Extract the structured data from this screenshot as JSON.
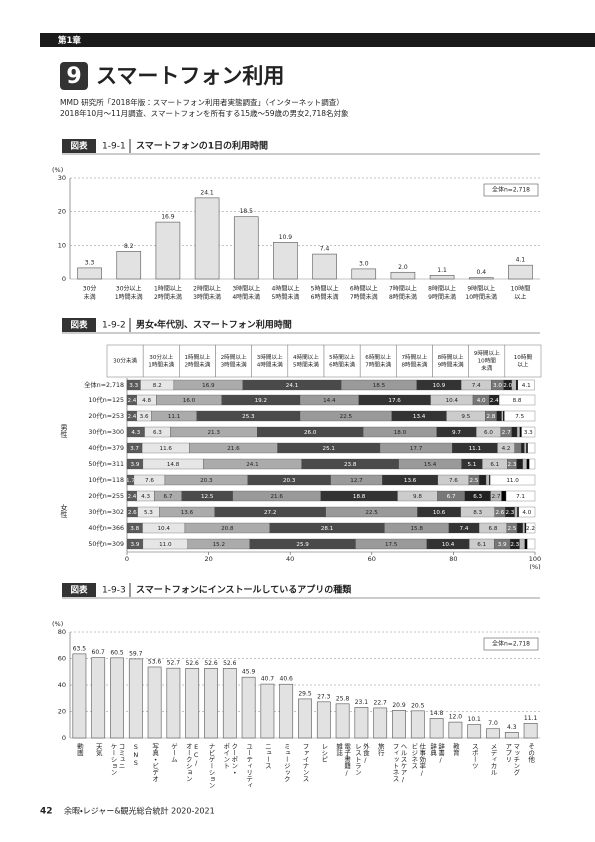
{
  "header": {
    "chapter": "第1章",
    "section_no": "9",
    "section_title": "スマートフォン利用"
  },
  "source": [
    "MMD 研究所「2018年版：スマートフォン利用者実態調査」（インターネット調査）",
    "2018年10月～11月調査、スマートフォンを所有する15歳～59歳の男女2,718名対象"
  ],
  "footer": {
    "page": "42",
    "book": "余暇・レジャー&観光総合統計 2020-2021"
  },
  "chart_data": [
    {
      "type": "bar",
      "figure_tag": "図表",
      "figure_no": "1-9-1",
      "title": "スマートフォンの1日の利用時間",
      "y_unit": "(%)",
      "legend_label": "全体n=2,718",
      "color": "#e2e2e2",
      "grid": true,
      "categories": [
        [
          "30分",
          "未満"
        ],
        [
          "30分以上",
          "1時間未満"
        ],
        [
          "1時間以上",
          "2時間未満"
        ],
        [
          "2時間以上",
          "3時間未満"
        ],
        [
          "3時間以上",
          "4時間未満"
        ],
        [
          "4時間以上",
          "5時間未満"
        ],
        [
          "5時間以上",
          "6時間未満"
        ],
        [
          "6時間以上",
          "7時間未満"
        ],
        [
          "7時間以上",
          "8時間未満"
        ],
        [
          "8時間以上",
          "9時間未満"
        ],
        [
          "9時間以上",
          "10時間未満"
        ],
        [
          "10時間",
          "以上"
        ]
      ],
      "values": [
        3.3,
        8.2,
        16.9,
        24.1,
        18.5,
        10.9,
        7.4,
        3.0,
        2.0,
        1.1,
        0.4,
        4.1
      ],
      "value_labels": [
        "3.3",
        "8.2",
        "16.9",
        "24.1",
        "18.5",
        "10.9",
        "7.4",
        "3.0",
        "2.0",
        "1.1",
        "0.4",
        "4.1"
      ],
      "ylim": [
        0,
        30
      ],
      "yticks": [
        0,
        10,
        20,
        30
      ]
    },
    {
      "type": "stacked-hbar",
      "figure_tag": "図表",
      "figure_no": "1-9-2",
      "title": "男女・年代別、スマートフォン利用時間",
      "x_unit": "(%)",
      "group_labels": [
        "男性",
        "女性"
      ],
      "categories": [
        "全体n=2,718",
        "10代n=125",
        "20代n=253",
        "30代n=300",
        "40代n=379",
        "50代n=311",
        "10代n=118",
        "20代n=255",
        "30代n=302",
        "40代n=366",
        "50代n=309"
      ],
      "series": [
        {
          "name": [
            "30分未満"
          ],
          "color": "#5a5a5a",
          "values": [
            3.3,
            2.4,
            2.4,
            4.3,
            3.7,
            3.9,
            1.7,
            2.4,
            2.6,
            3.8,
            3.9
          ],
          "value_labels": [
            "3.3",
            "2.4",
            "2.4",
            "4.3",
            "3.7",
            "3.9",
            "1.7",
            "2.4",
            "2.6",
            "3.8",
            "3.9"
          ]
        },
        {
          "name": [
            "30分以上",
            "1時間未満"
          ],
          "color": "#e6e6e6",
          "values": [
            8.2,
            4.8,
            3.6,
            6.3,
            11.6,
            14.8,
            7.6,
            4.3,
            5.3,
            10.4,
            11.0
          ],
          "value_labels": [
            "8.2",
            "4.8",
            "3.6",
            "6.3",
            "11.6",
            "14.8",
            "7.6",
            "4.3",
            "5.3",
            "10.4",
            "11.0"
          ]
        },
        {
          "name": [
            "1時間以上",
            "2時間未満"
          ],
          "color": "#ababab",
          "values": [
            16.9,
            16.0,
            11.1,
            21.3,
            21.6,
            24.1,
            20.3,
            6.7,
            13.6,
            20.8,
            15.2
          ],
          "value_labels": [
            "16.9",
            "16.0",
            "11.1",
            "21.3",
            "21.6",
            "24.1",
            "20.3",
            "6.7",
            "13.6",
            "20.8",
            "15.2"
          ]
        },
        {
          "name": [
            "2時間以上",
            "3時間未満"
          ],
          "color": "#4a4a4a",
          "values": [
            24.1,
            19.2,
            25.3,
            26.0,
            25.1,
            23.8,
            20.3,
            12.5,
            27.2,
            28.1,
            25.9
          ],
          "value_labels": [
            "24.1",
            "19.2",
            "25.3",
            "26.0",
            "25.1",
            "23.8",
            "20.3",
            "12.5",
            "27.2",
            "28.1",
            "25.9"
          ]
        },
        {
          "name": [
            "3時間以上",
            "4時間未満"
          ],
          "color": "#9a9a9a",
          "values": [
            18.5,
            14.4,
            22.5,
            18.0,
            17.7,
            15.4,
            12.7,
            21.6,
            22.5,
            15.8,
            17.5
          ],
          "value_labels": [
            "18.5",
            "14.4",
            "22.5",
            "18.0",
            "17.7",
            "15.4",
            "12.7",
            "21.6",
            "22.5",
            "15.8",
            "17.5"
          ]
        },
        {
          "name": [
            "4時間以上",
            "5時間未満"
          ],
          "color": "#333333",
          "values": [
            10.9,
            17.6,
            13.4,
            9.7,
            11.1,
            5.1,
            13.6,
            18.8,
            10.6,
            7.4,
            10.4
          ],
          "value_labels": [
            "10.9",
            "17.6",
            "13.4",
            "9.7",
            "11.1",
            "5.1",
            "13.6",
            "18.8",
            "10.6",
            "7.4",
            "10.4"
          ]
        },
        {
          "name": [
            "5時間以上",
            "6時間未満"
          ],
          "color": "#cccccc",
          "values": [
            7.4,
            10.4,
            9.5,
            6.0,
            4.2,
            6.1,
            7.6,
            9.8,
            8.3,
            6.8,
            6.1
          ],
          "value_labels": [
            "7.4",
            "10.4",
            "9.5",
            "6.0",
            "4.2",
            "6.1",
            "7.6",
            "9.8",
            "8.3",
            "6.8",
            "6.1"
          ]
        },
        {
          "name": [
            "6時間以上",
            "7時間未満"
          ],
          "color": "#777777",
          "values": [
            3.0,
            4.0,
            2.8,
            2.7,
            1.6,
            2.3,
            2.5,
            6.7,
            2.6,
            2.5,
            3.9
          ],
          "value_labels": [
            "3.0",
            "4.0",
            "2.8",
            "2.7",
            null,
            "2.3",
            "2.5",
            "6.7",
            "2.6",
            "2.5",
            "3.9"
          ]
        },
        {
          "name": [
            "7時間以上",
            "8時間未満"
          ],
          "color": "#222222",
          "values": [
            2.0,
            2.4,
            1.2,
            1.3,
            0.8,
            1.5,
            1.7,
            6.3,
            2.3,
            1.4,
            2.3
          ],
          "value_labels": [
            "2.0",
            "2.4",
            null,
            null,
            null,
            null,
            null,
            "6.3",
            "2.3",
            null,
            "2.3"
          ]
        },
        {
          "name": [
            "8時間以上",
            "9時間未満"
          ],
          "color": "#bbbbbb",
          "values": [
            1.1,
            0,
            0.4,
            0.7,
            0.5,
            1.0,
            0.8,
            2.7,
            0.7,
            0.5,
            1.3
          ],
          "value_labels": [
            null,
            null,
            null,
            null,
            null,
            null,
            null,
            "2.7",
            null,
            null,
            null
          ]
        },
        {
          "name": [
            "9時間以上",
            "10時間",
            "未満"
          ],
          "color": "#000000",
          "values": [
            0.4,
            0,
            0.3,
            0.4,
            0.3,
            0.6,
            0.2,
            1.1,
            0.3,
            0.3,
            0.6
          ],
          "value_labels": [
            null,
            null,
            null,
            null,
            null,
            null,
            null,
            null,
            null,
            null,
            null
          ]
        },
        {
          "name": [
            "10時間",
            "以上"
          ],
          "color": "#ffffff",
          "values": [
            4.1,
            8.8,
            7.5,
            3.3,
            1.8,
            1.4,
            11.0,
            7.1,
            4.0,
            2.2,
            1.9
          ],
          "value_labels": [
            "4.1",
            "8.8",
            "7.5",
            "3.3",
            null,
            null,
            "11.0",
            "7.1",
            "4.0",
            "2.2",
            null
          ]
        }
      ],
      "xlim": [
        0,
        100
      ],
      "xticks": [
        0,
        20,
        40,
        60,
        80,
        100
      ]
    },
    {
      "type": "bar",
      "figure_tag": "図表",
      "figure_no": "1-9-3",
      "title": "スマートフォンにインストールしているアプリの種類",
      "y_unit": "(%)",
      "legend_label": "全体n=2,718",
      "color": "#e2e2e2",
      "grid": true,
      "vertical_labels": true,
      "categories": [
        [
          "動画"
        ],
        [
          "天気"
        ],
        [
          "コミュニ",
          "ケーション"
        ],
        [
          "SNS"
        ],
        [
          "写真・ビデオ"
        ],
        [
          "ゲーム"
        ],
        [
          "EC/",
          "オークション"
        ],
        [
          "ナビゲーション"
        ],
        [
          "クーポン・",
          "ポイント"
        ],
        [
          "ユーティリティ"
        ],
        [
          "ニュース"
        ],
        [
          "ミュージック"
        ],
        [
          "ファイナンス"
        ],
        [
          "レシピ"
        ],
        [
          "電子書籍/",
          "雑誌"
        ],
        [
          "外食/",
          "レストラン"
        ],
        [
          "旅行"
        ],
        [
          "ヘルスケア/",
          "フィットネス"
        ],
        [
          "仕事効率/",
          "ビジネス"
        ],
        [
          "辞書/",
          "辞典"
        ],
        [
          "教育"
        ],
        [
          "スポーツ"
        ],
        [
          "メディカル"
        ],
        [
          "マッチング",
          "アプリ"
        ],
        [
          "その他"
        ]
      ],
      "values": [
        63.5,
        60.7,
        60.5,
        59.7,
        53.6,
        52.7,
        52.6,
        52.6,
        52.6,
        45.9,
        40.7,
        40.6,
        29.5,
        27.3,
        25.8,
        23.1,
        22.7,
        20.9,
        20.5,
        14.8,
        12.0,
        10.1,
        7.0,
        4.3,
        11.1
      ],
      "value_labels": [
        "63.5",
        "60.7",
        "60.5",
        "59.7",
        "53.6",
        "52.7",
        "52.6",
        "52.6",
        "52.6",
        "45.9",
        "40.7",
        "40.6",
        "29.5",
        "27.3",
        "25.8",
        "23.1",
        "22.7",
        "20.9",
        "20.5",
        "14.8",
        "12.0",
        "10.1",
        "7.0",
        "4.3",
        "11.1"
      ],
      "ylim": [
        0,
        80
      ],
      "yticks": [
        0,
        20,
        40,
        60,
        80
      ]
    }
  ]
}
